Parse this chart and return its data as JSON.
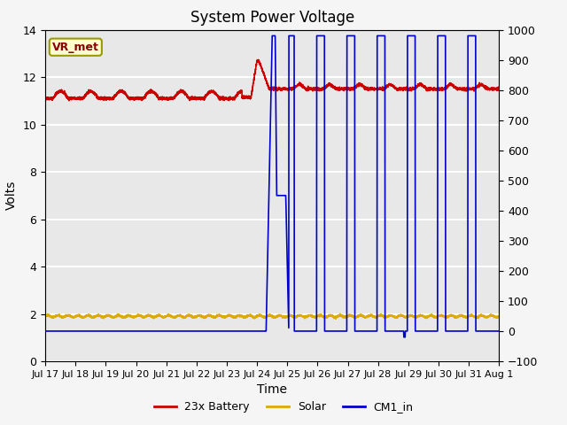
{
  "title": "System Power Voltage",
  "xlabel": "Time",
  "ylabel": "Volts",
  "ylim_left": [
    0,
    14
  ],
  "ylim_right": [
    -100,
    1000
  ],
  "background_color": "#f5f5f5",
  "plot_bg_color": "#e8e8e8",
  "grid_color": "#ffffff",
  "annotation_label": "VR_met",
  "annotation_text_color": "#8b0000",
  "annotation_bg_color": "#ffffcc",
  "annotation_border_color": "#999900",
  "xtick_labels": [
    "Jul 17",
    "Jul 18",
    "Jul 19",
    "Jul 20",
    "Jul 21",
    "Jul 22",
    "Jul 23",
    "Jul 24",
    "Jul 25",
    "Jul 26",
    "Jul 27",
    "Jul 28",
    "Jul 29",
    "Jul 30",
    "Jul 31",
    "Aug 1"
  ],
  "colors": {
    "battery": "#cc0000",
    "solar": "#ddaa00",
    "cm1": "#0000cc"
  },
  "legend_labels": [
    "23x Battery",
    "Solar",
    "CM1_in"
  ],
  "left_ticks": [
    0,
    2,
    4,
    6,
    8,
    10,
    12,
    14
  ],
  "right_ticks": [
    -100,
    0,
    100,
    200,
    300,
    400,
    500,
    600,
    700,
    800,
    900,
    1000
  ]
}
